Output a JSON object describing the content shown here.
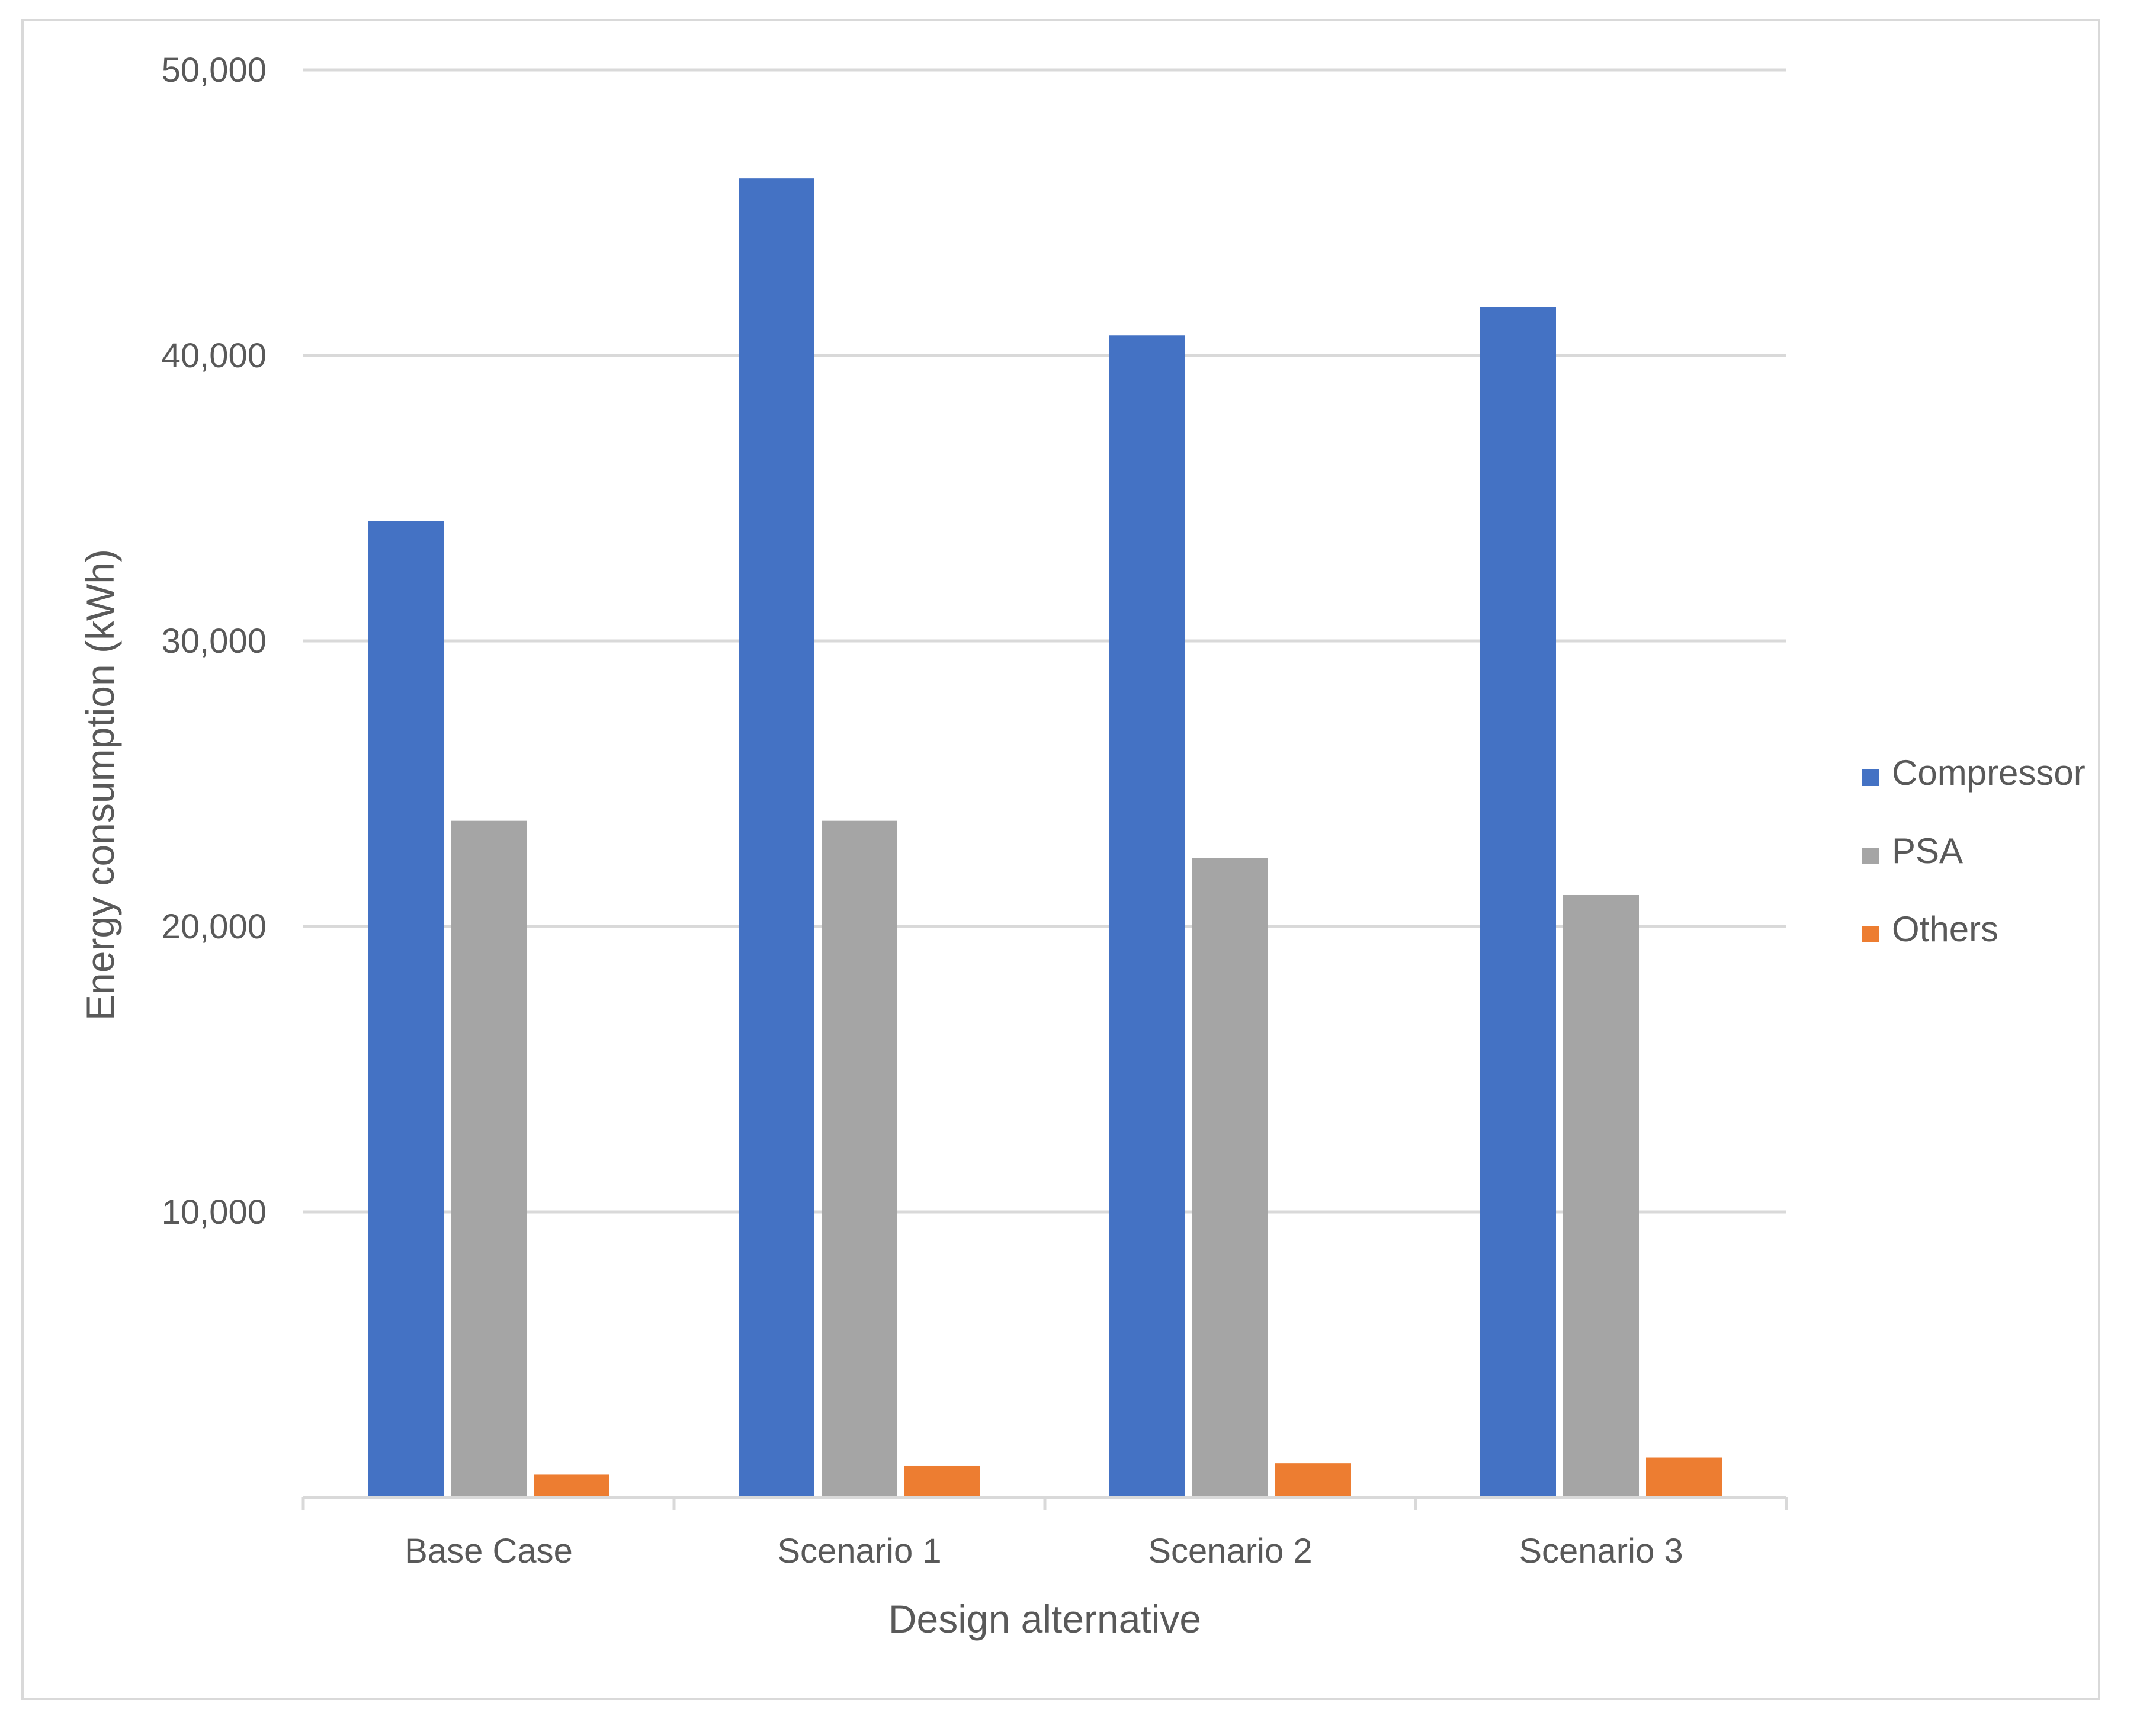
{
  "chart_data": {
    "type": "bar",
    "title": "",
    "xlabel": "Design alternative",
    "ylabel": "Energy consumption (kWh)",
    "categories": [
      "Base Case",
      "Scenario 1",
      "Scenario 2",
      "Scenario 3"
    ],
    "series": [
      {
        "name": "Compressor",
        "color": "#4472c4",
        "values": [
          34200,
          46200,
          40700,
          41700
        ]
      },
      {
        "name": "PSA",
        "color": "#a5a5a5",
        "values": [
          23700,
          23700,
          22400,
          21100
        ]
      },
      {
        "name": "Others",
        "color": "#ed7d31",
        "values": [
          800,
          1100,
          1200,
          1400
        ]
      }
    ],
    "ylim": [
      0,
      50000
    ],
    "yticks": [
      {
        "value": 10000,
        "label": "10,000"
      },
      {
        "value": 20000,
        "label": "20,000"
      },
      {
        "value": 30000,
        "label": "30,000"
      },
      {
        "value": 40000,
        "label": "40,000"
      },
      {
        "value": 50000,
        "label": "50,000"
      }
    ],
    "grid": true,
    "legend_position": "right"
  }
}
